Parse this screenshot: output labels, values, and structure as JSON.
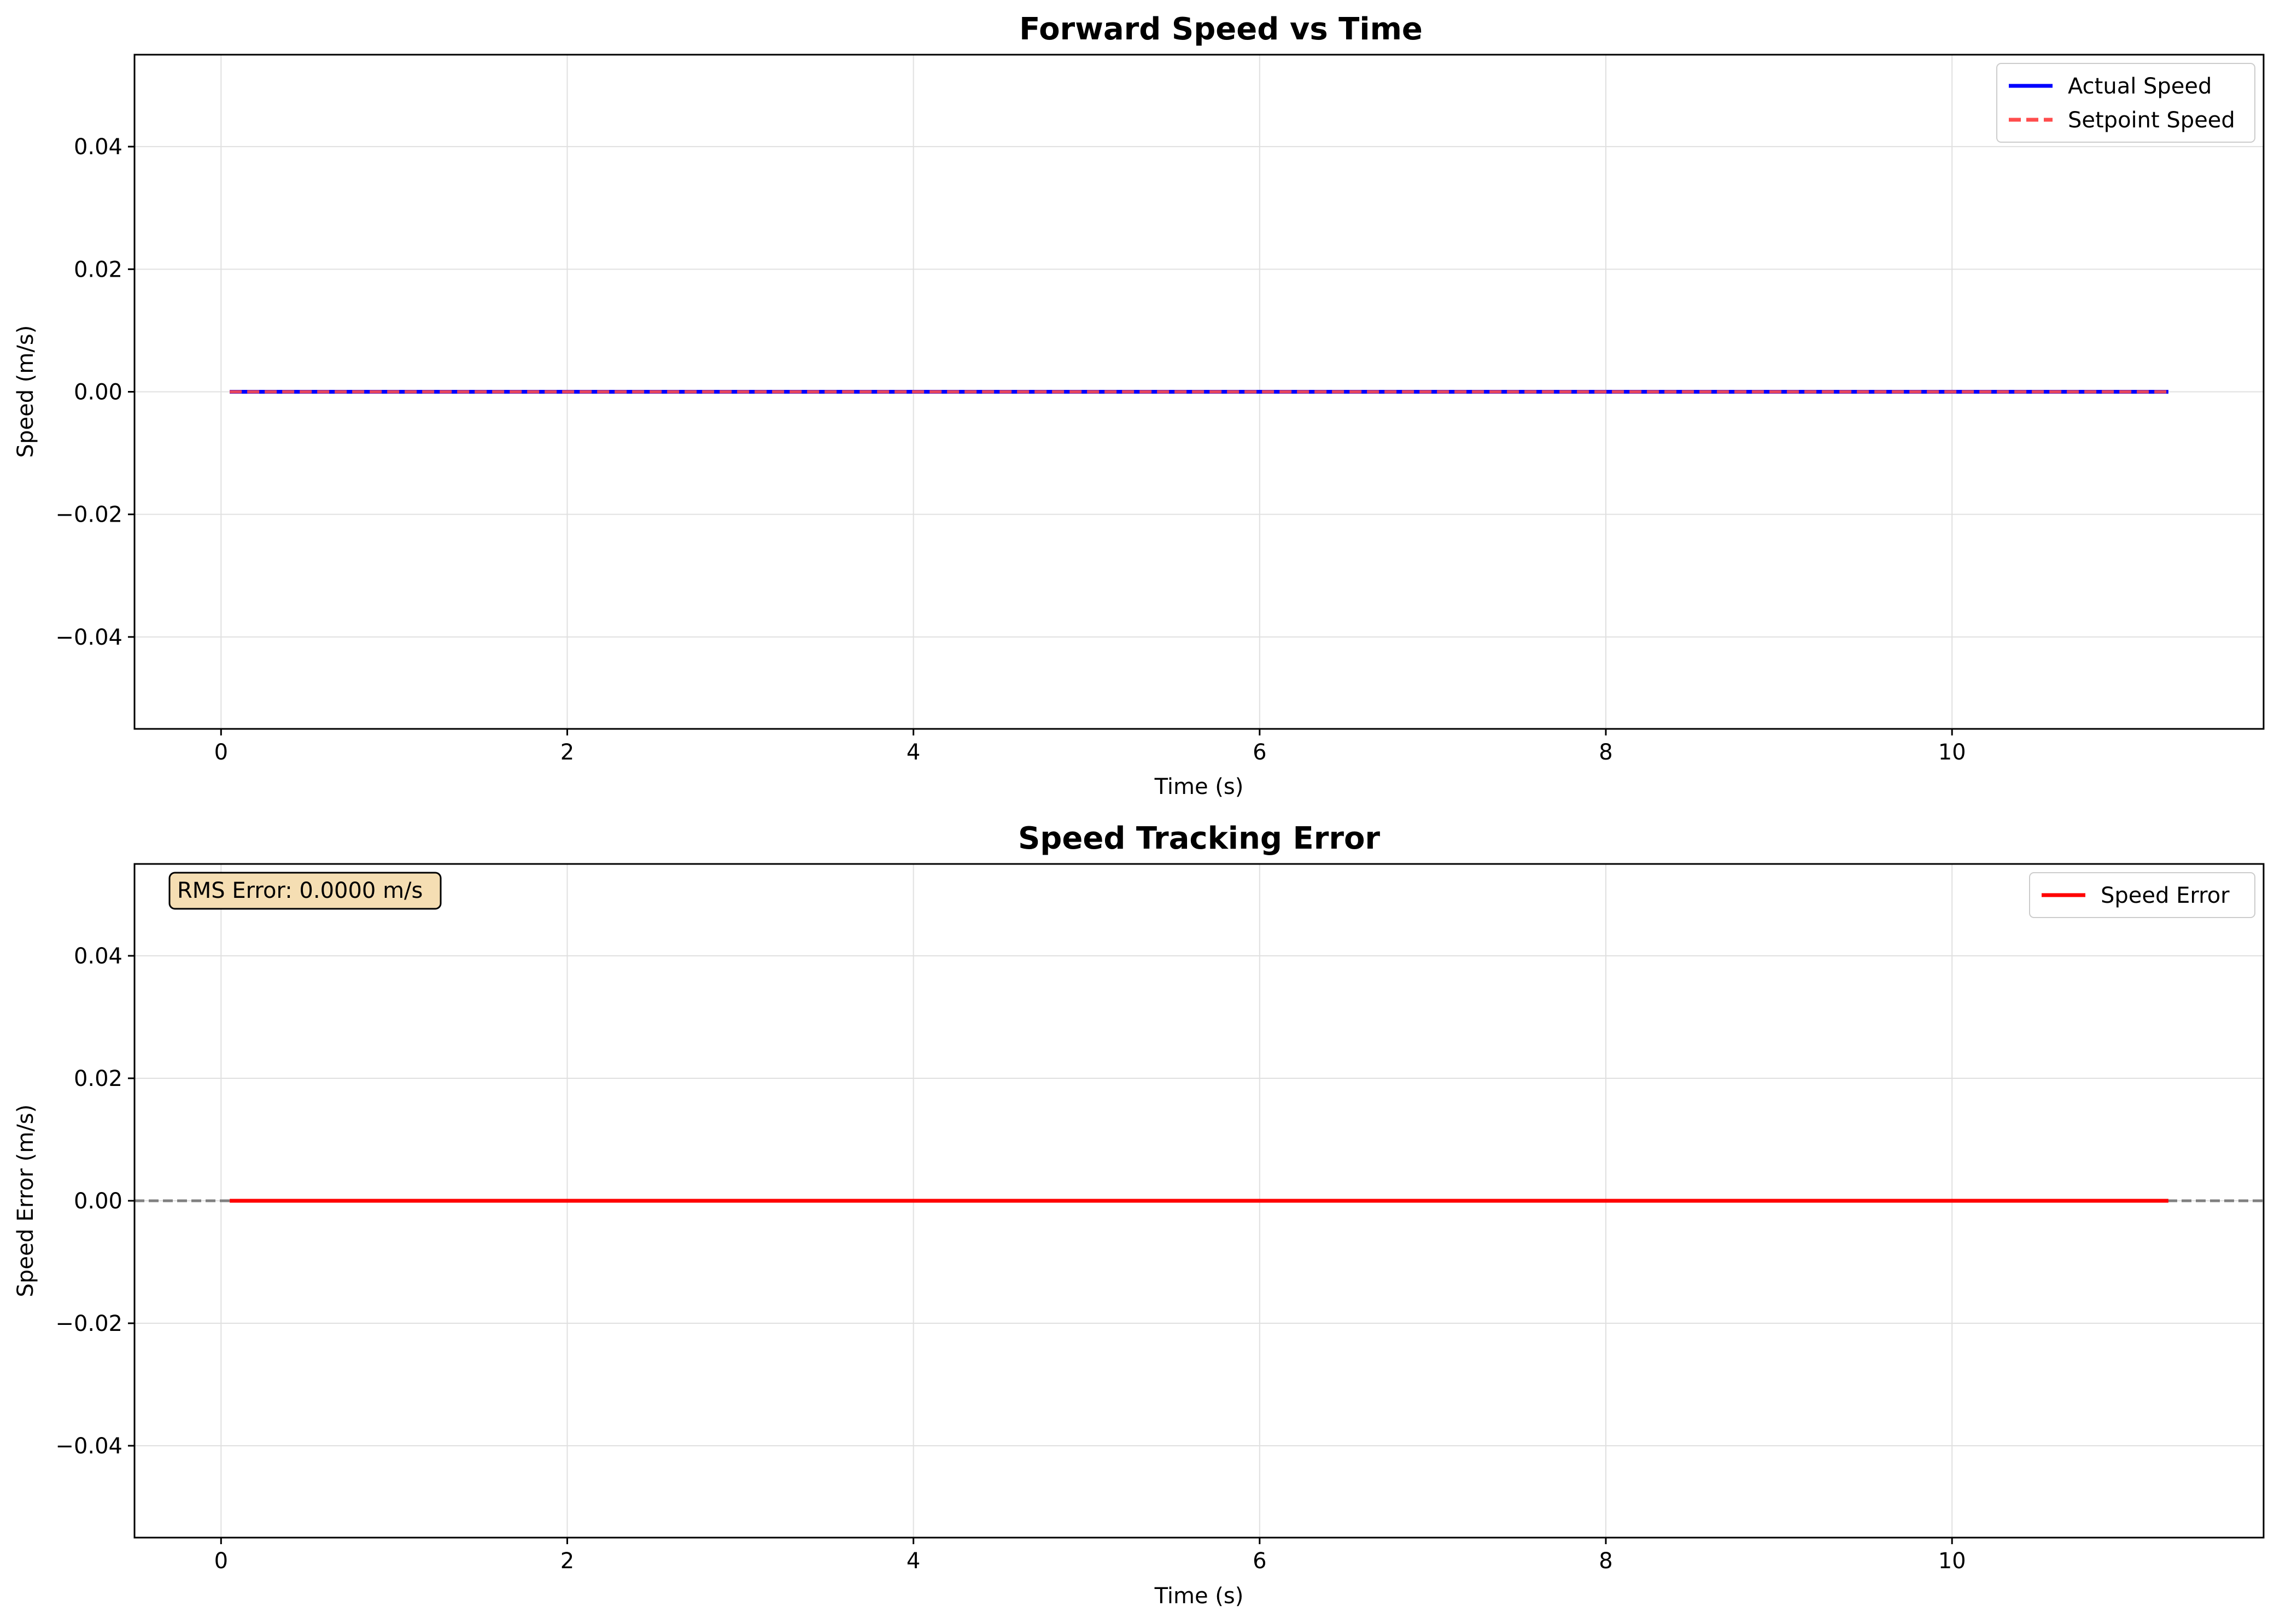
{
  "chart_data": [
    {
      "type": "line",
      "title": "Forward Speed vs Time",
      "xlabel": "Time (s)",
      "ylabel": "Speed (m/s)",
      "xlim": [
        -0.5,
        11.8
      ],
      "ylim": [
        -0.055,
        0.055
      ],
      "xticks": [
        0,
        2,
        4,
        6,
        8,
        10
      ],
      "yticks": [
        -0.04,
        -0.02,
        0.0,
        0.02,
        0.04
      ],
      "xtick_labels": [
        "0",
        "2",
        "4",
        "6",
        "8",
        "10"
      ],
      "ytick_labels": [
        "−0.04",
        "−0.02",
        "0.00",
        "0.02",
        "0.04"
      ],
      "grid": true,
      "legend_position": "top-right",
      "series": [
        {
          "name": "Actual Speed",
          "style": "solid",
          "color": "#0000ff",
          "x": [
            0.05,
            11.25
          ],
          "y": [
            0.0,
            0.0
          ]
        },
        {
          "name": "Setpoint Speed",
          "style": "dashed",
          "color": "#ff4d4d",
          "x": [
            0.05,
            11.25
          ],
          "y": [
            0.0,
            0.0
          ]
        }
      ]
    },
    {
      "type": "line",
      "title": "Speed Tracking Error",
      "xlabel": "Time (s)",
      "ylabel": "Speed Error (m/s)",
      "xlim": [
        -0.5,
        11.8
      ],
      "ylim": [
        -0.055,
        0.055
      ],
      "xticks": [
        0,
        2,
        4,
        6,
        8,
        10
      ],
      "yticks": [
        -0.04,
        -0.02,
        0.0,
        0.02,
        0.04
      ],
      "xtick_labels": [
        "0",
        "2",
        "4",
        "6",
        "8",
        "10"
      ],
      "ytick_labels": [
        "−0.04",
        "−0.02",
        "0.00",
        "0.02",
        "0.04"
      ],
      "grid": true,
      "legend_position": "top-right",
      "reference_line": {
        "y": 0.0,
        "style": "dashed",
        "color": "#808080"
      },
      "annotation": "RMS Error: 0.0000 m/s",
      "annotation_position": "top-left",
      "series": [
        {
          "name": "Speed Error",
          "style": "solid",
          "color": "#ff0000",
          "x": [
            0.05,
            11.25
          ],
          "y": [
            0.0,
            0.0
          ]
        }
      ]
    }
  ],
  "colors": {
    "grid": "#e0e0e0",
    "axes": "#000000",
    "annotation_fill": "#f5deb3"
  }
}
